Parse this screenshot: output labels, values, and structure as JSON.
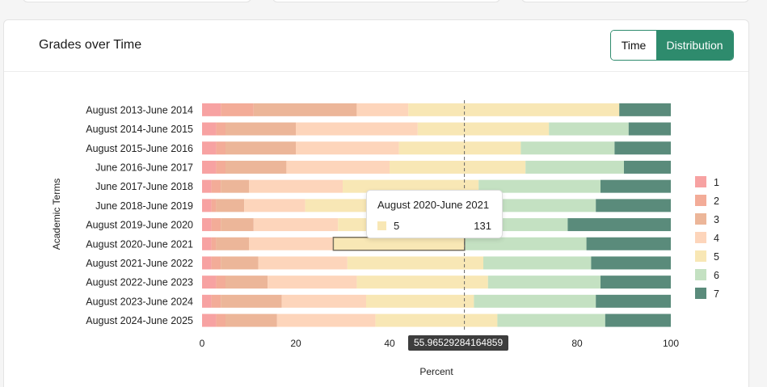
{
  "panel": {
    "title": "Grades over Time",
    "toggle": {
      "time_label": "Time",
      "distribution_label": "Distribution",
      "active": "Distribution"
    }
  },
  "colors": {
    "accent": "#2e8b6d",
    "grade_colors": [
      "#f7a2a2",
      "#f3ac98",
      "#ecb699",
      "#fdd5bb",
      "#f8e7b5",
      "#c4e1c2",
      "#5a8b7b"
    ]
  },
  "chart_data": {
    "type": "bar",
    "orientation": "horizontal",
    "stacked": true,
    "categories": [
      "August 2013-June 2014",
      "August 2014-June 2015",
      "August 2015-June 2016",
      "June 2016-June 2017",
      "June 2017-June 2018",
      "June 2018-June 2019",
      "August 2019-June 2020",
      "August 2020-June 2021",
      "August 2021-June 2022",
      "August 2022-June 2023",
      "August 2023-June 2024",
      "August 2024-June 2025"
    ],
    "series": [
      {
        "name": "1",
        "values": [
          4,
          3,
          3,
          3,
          2,
          2,
          2,
          2,
          2,
          3,
          2,
          3
        ]
      },
      {
        "name": "2",
        "values": [
          7,
          2,
          2,
          2,
          2,
          1,
          2,
          1,
          2,
          2,
          2,
          2
        ]
      },
      {
        "name": "3",
        "values": [
          22,
          15,
          15,
          13,
          6,
          6,
          7,
          7,
          8,
          9,
          13,
          11
        ]
      },
      {
        "name": "4",
        "values": [
          11,
          26,
          22,
          22,
          20,
          13,
          18,
          18,
          19,
          19,
          18,
          21
        ]
      },
      {
        "name": "5",
        "values": [
          45,
          28,
          26,
          29,
          29,
          20,
          22,
          28,
          29,
          28,
          23,
          26
        ]
      },
      {
        "name": "6",
        "values": [
          0,
          17,
          20,
          21,
          26,
          42,
          27,
          26,
          23,
          24,
          26,
          23
        ]
      },
      {
        "name": "7",
        "values": [
          11,
          9,
          12,
          10,
          15,
          16,
          22,
          18,
          17,
          15,
          16,
          14
        ]
      }
    ],
    "xlabel": "Percent",
    "ylabel": "Academic Terms",
    "xlim": [
      0,
      100
    ],
    "xticks": [
      0,
      20,
      40,
      60,
      80,
      100
    ],
    "legend": {
      "position": "right",
      "entries": [
        "1",
        "2",
        "3",
        "4",
        "5",
        "6",
        "7"
      ]
    },
    "highlight": {
      "category": "August 2020-June 2021",
      "series": "5"
    },
    "cursor": {
      "x": 55.96529284164859,
      "label": "55.96529284164859"
    },
    "tooltip": {
      "title": "August 2020-June 2021",
      "series": "5",
      "value": "131"
    }
  }
}
